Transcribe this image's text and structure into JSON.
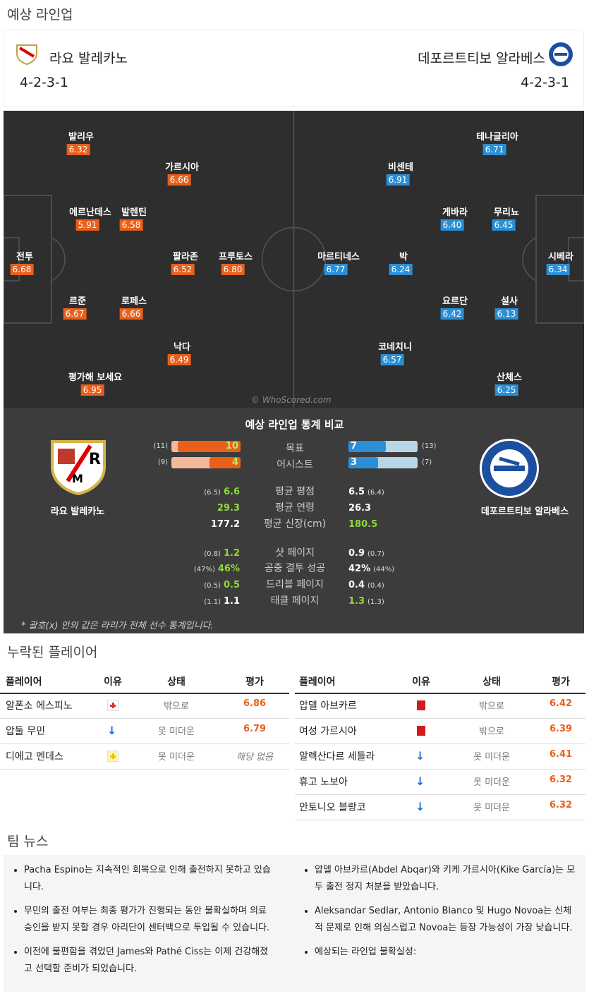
{
  "header": {
    "title": "예상 라인업"
  },
  "teams": {
    "home": {
      "name": "라요 발레카노",
      "formation": "4-2-3-1"
    },
    "away": {
      "name": "데포르트티보 알라베스",
      "formation": "4-2-3-1"
    }
  },
  "pitch": {
    "watermark": "© WhoScored.com",
    "home_players": [
      {
        "name": "발리우",
        "rating": "6.32"
      },
      {
        "name": "가르시아",
        "rating": "6.66"
      },
      {
        "name": "에르난데스",
        "rating": "5.91"
      },
      {
        "name": "발렌틴",
        "rating": "6.58"
      },
      {
        "name": "전투",
        "rating": "6.68"
      },
      {
        "name": "팔라존",
        "rating": "6.52"
      },
      {
        "name": "프루토스",
        "rating": "6.80"
      },
      {
        "name": "르준",
        "rating": "6.67"
      },
      {
        "name": "로페스",
        "rating": "6.66"
      },
      {
        "name": "낙다",
        "rating": "6.49"
      },
      {
        "name": "평가해 보세요",
        "rating": "6.95"
      }
    ],
    "away_players": [
      {
        "name": "테나글리아",
        "rating": "6.71"
      },
      {
        "name": "비센테",
        "rating": "6.91"
      },
      {
        "name": "게바라",
        "rating": "6.40"
      },
      {
        "name": "무리뇨",
        "rating": "6.45"
      },
      {
        "name": "마르티네스",
        "rating": "6.77"
      },
      {
        "name": "박",
        "rating": "6.24"
      },
      {
        "name": "시베라",
        "rating": "6.34"
      },
      {
        "name": "요르단",
        "rating": "6.42"
      },
      {
        "name": "설사",
        "rating": "6.13"
      },
      {
        "name": "코네치니",
        "rating": "6.57"
      },
      {
        "name": "산체스",
        "rating": "6.25"
      }
    ]
  },
  "comparison": {
    "title": "예상 라인업 통계 비교",
    "home_name": "라요 발레카노",
    "away_name": "데포르트티보 알라베스",
    "bars": [
      {
        "label": "목표",
        "home": 10,
        "home_total": {
          "value": 11,
          "label": "(11)"
        },
        "away": 7,
        "away_total": {
          "value": 13,
          "label": "(13)"
        }
      },
      {
        "label": "어시스트",
        "home": 4,
        "home_total": {
          "value": 9,
          "label": "(9)"
        },
        "away": 3,
        "away_total": {
          "value": 7,
          "label": "(7)"
        }
      }
    ],
    "stats": [
      {
        "label": "평균 평점",
        "home": "6.6",
        "home_avg": "(6.5)",
        "away": "6.5",
        "away_avg": "(6.4)",
        "better": "home"
      },
      {
        "label": "평균 연령",
        "home": "29.3",
        "home_avg": null,
        "away": "26.3",
        "away_avg": null,
        "better": "home"
      },
      {
        "label": "평균 신장(cm)",
        "home": "177.2",
        "home_avg": null,
        "away": "180.5",
        "away_avg": null,
        "better": "away"
      },
      {
        "label": "샷 페이지",
        "home": "1.2",
        "home_avg": "(0.8)",
        "away": "0.9",
        "away_avg": "(0.7)",
        "better": "home"
      },
      {
        "label": "공중 결투 성공",
        "home": "46%",
        "home_avg": "(47%)",
        "away": "42%",
        "away_avg": "(44%)",
        "better": "home"
      },
      {
        "label": "드리블 페이지",
        "home": "0.5",
        "home_avg": "(0.5)",
        "away": "0.4",
        "away_avg": "(0.4)",
        "better": "home"
      },
      {
        "label": "태클 페이지",
        "home": "1.1",
        "home_avg": "(1.1)",
        "away": "1.3",
        "away_avg": "(1.3)",
        "better": "away"
      }
    ],
    "footnote": "* 괄호(x) 안의 값은 라리가 전체 선수 통계입니다."
  },
  "missing": {
    "title": "누락된 플레이어",
    "headers": [
      "플레이어",
      "이유",
      "상태",
      "평가"
    ],
    "home": [
      {
        "name": "알폰소 에스피노",
        "icon": "injury",
        "status": "밖으로",
        "rating": "6.86"
      },
      {
        "name": "압둘 무민",
        "icon": "doubtful",
        "status": "못 미더운",
        "rating": "6.79"
      },
      {
        "name": "디에고 멘데스",
        "icon": "knock",
        "status": "못 미더운",
        "rating": "해당 없음"
      }
    ],
    "away": [
      {
        "name": "압델 아브카르",
        "icon": "suspended",
        "status": "밖으로",
        "rating": "6.42"
      },
      {
        "name": "여성 가르시아",
        "icon": "suspended",
        "status": "밖으로",
        "rating": "6.39"
      },
      {
        "name": "알렉산다르 세들라",
        "icon": "doubtful",
        "status": "못 미더운",
        "rating": "6.41"
      },
      {
        "name": "휴고 노보아",
        "icon": "doubtful",
        "status": "못 미더운",
        "rating": "6.32"
      },
      {
        "name": "안토니오 블랑코",
        "icon": "doubtful",
        "status": "못 미더운",
        "rating": "6.32"
      }
    ]
  },
  "news": {
    "title": "팀 뉴스",
    "home": [
      "Pacha Espino는 지속적인 회복으로 인해 출전하지 못하고 있습니다.",
      "무민의 출전 여부는 최종 평가가 진행되는 동안 불확실하며 의료 승인을 받지 못할 경우 아리단이 센터백으로 투입될 수 있습니다.",
      "이전에 불편함을 겪었던 James와 Pathé Ciss는 이제 건강해졌고 선택할 준비가 되었습니다."
    ],
    "away": [
      "압델 아브카르(Abdel Abqar)와 키케 가르시아(Kike García)는 모두 출전 정지 처분을 받았습니다.",
      "Aleksandar Sedlar, Antonio Blanco 및 Hugo Novoa는 신체적 문제로 인해 의심스럽고 Novoa는 등장 가능성이 가장 낮습니다.",
      "예상되는 라인업 불확실성:"
    ]
  }
}
